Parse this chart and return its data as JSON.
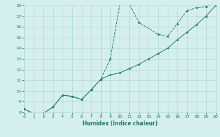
{
  "xlabel": "Humidex (Indice chaleur)",
  "xlim": [
    0,
    20
  ],
  "ylim": [
    8,
    18
  ],
  "xticks": [
    0,
    1,
    2,
    3,
    4,
    5,
    6,
    7,
    8,
    9,
    10,
    11,
    12,
    13,
    14,
    15,
    16,
    17,
    18,
    19,
    20
  ],
  "yticks": [
    8,
    9,
    10,
    11,
    12,
    13,
    14,
    15,
    16,
    17,
    18
  ],
  "bg_color": "#d5efee",
  "grid_color": "#b8dbd9",
  "line_color": "#1a7a6e",
  "line1_x": [
    0,
    1,
    2,
    3,
    4,
    5,
    6,
    7,
    8,
    9,
    10,
    11,
    12,
    14,
    15,
    16,
    17,
    18,
    19,
    20
  ],
  "line1_y": [
    8.3,
    7.9,
    7.9,
    8.5,
    9.6,
    9.5,
    9.2,
    10.1,
    11.1,
    13.0,
    18.2,
    18.1,
    16.4,
    15.3,
    15.1,
    16.3,
    17.5,
    17.8,
    17.9,
    18.2
  ],
  "line2_x": [
    0,
    1,
    2,
    3,
    4,
    5,
    6,
    7,
    8,
    9,
    10,
    11,
    12,
    13,
    14,
    15,
    16,
    17,
    18,
    19,
    20
  ],
  "line2_y": [
    8.3,
    7.9,
    7.9,
    8.5,
    9.6,
    9.5,
    9.2,
    10.1,
    11.1,
    11.5,
    11.7,
    12.1,
    12.5,
    13.0,
    13.5,
    14.0,
    14.8,
    15.5,
    16.2,
    17.0,
    18.0
  ]
}
